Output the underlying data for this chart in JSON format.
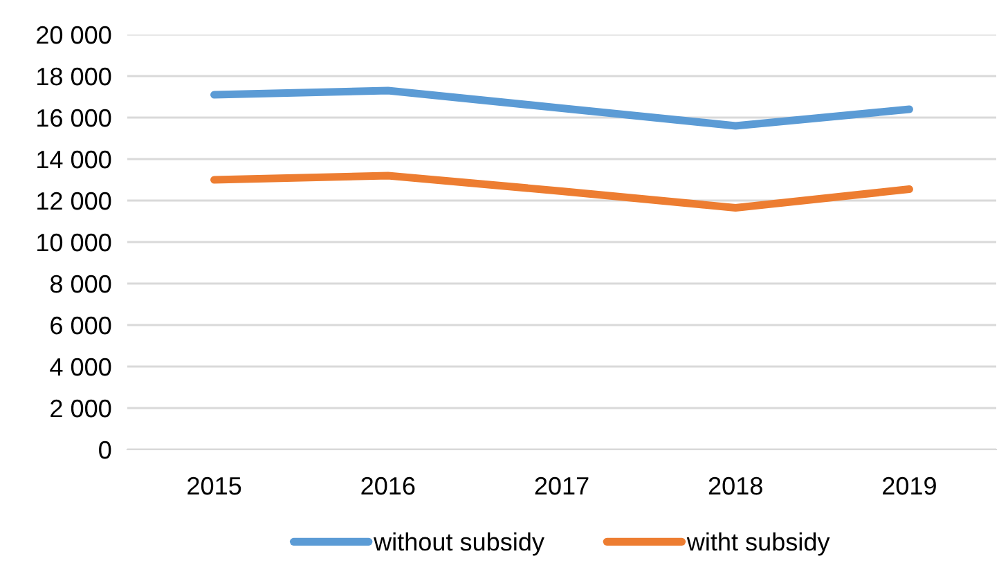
{
  "chart_data": {
    "type": "line",
    "categories": [
      "2015",
      "2016",
      "2017",
      "2018",
      "2019"
    ],
    "series": [
      {
        "name": "without subsidy",
        "color": "#5b9bd5",
        "values": [
          17100,
          17300,
          16450,
          15600,
          16400
        ]
      },
      {
        "name": "witht subsidy",
        "color": "#ed7d31",
        "values": [
          13000,
          13200,
          12450,
          11650,
          12550
        ]
      }
    ],
    "ylim": [
      0,
      20000
    ],
    "yticks": [
      {
        "value": 0,
        "label": "0"
      },
      {
        "value": 2000,
        "label": "2 000"
      },
      {
        "value": 4000,
        "label": "4 000"
      },
      {
        "value": 6000,
        "label": "6 000"
      },
      {
        "value": 8000,
        "label": "8 000"
      },
      {
        "value": 10000,
        "label": "10 000"
      },
      {
        "value": 12000,
        "label": "12 000"
      },
      {
        "value": 14000,
        "label": "14 000"
      },
      {
        "value": 16000,
        "label": "16 000"
      },
      {
        "value": 18000,
        "label": "18 000"
      },
      {
        "value": 20000,
        "label": "20 000"
      }
    ],
    "grid": "y",
    "legend": "bottom",
    "marker": "none",
    "line_style": "solid"
  }
}
